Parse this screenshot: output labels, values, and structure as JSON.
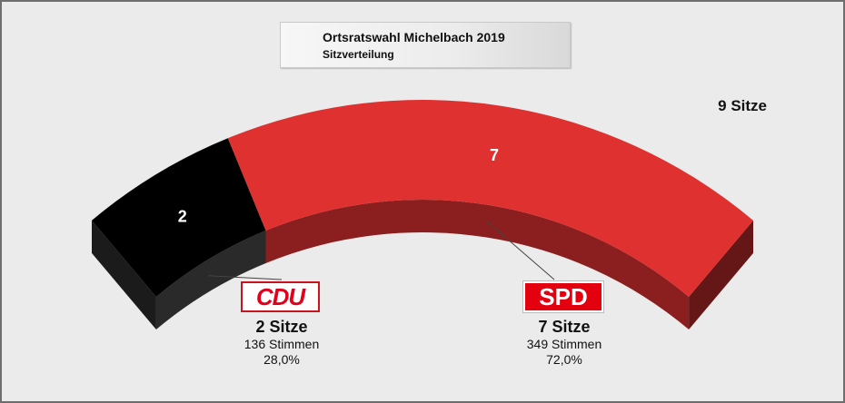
{
  "title": "Ortsratswahl Michelbach 2019",
  "subtitle": "Sitzverteilung",
  "total_label": "9 Sitze",
  "parties": [
    {
      "abbr": "CDU",
      "seats_label": "2 Sitze",
      "votes_label": "136 Stimmen",
      "percent_label": "28,0%",
      "seat_number": "2",
      "color": "#000000"
    },
    {
      "abbr": "SPD",
      "seats_label": "7 Sitze",
      "votes_label": "349 Stimmen",
      "percent_label": "72,0%",
      "seat_number": "7",
      "color": "#e03131"
    }
  ],
  "chart_data": {
    "type": "pie",
    "title": "Ortsratswahl Michelbach 2019",
    "subtitle": "Sitzverteilung",
    "total_seats": 9,
    "categories": [
      "CDU",
      "SPD"
    ],
    "values": [
      2,
      7
    ],
    "votes": [
      136,
      349
    ],
    "percent": [
      28.0,
      72.0
    ],
    "colors": [
      "#000000",
      "#e03131"
    ]
  }
}
